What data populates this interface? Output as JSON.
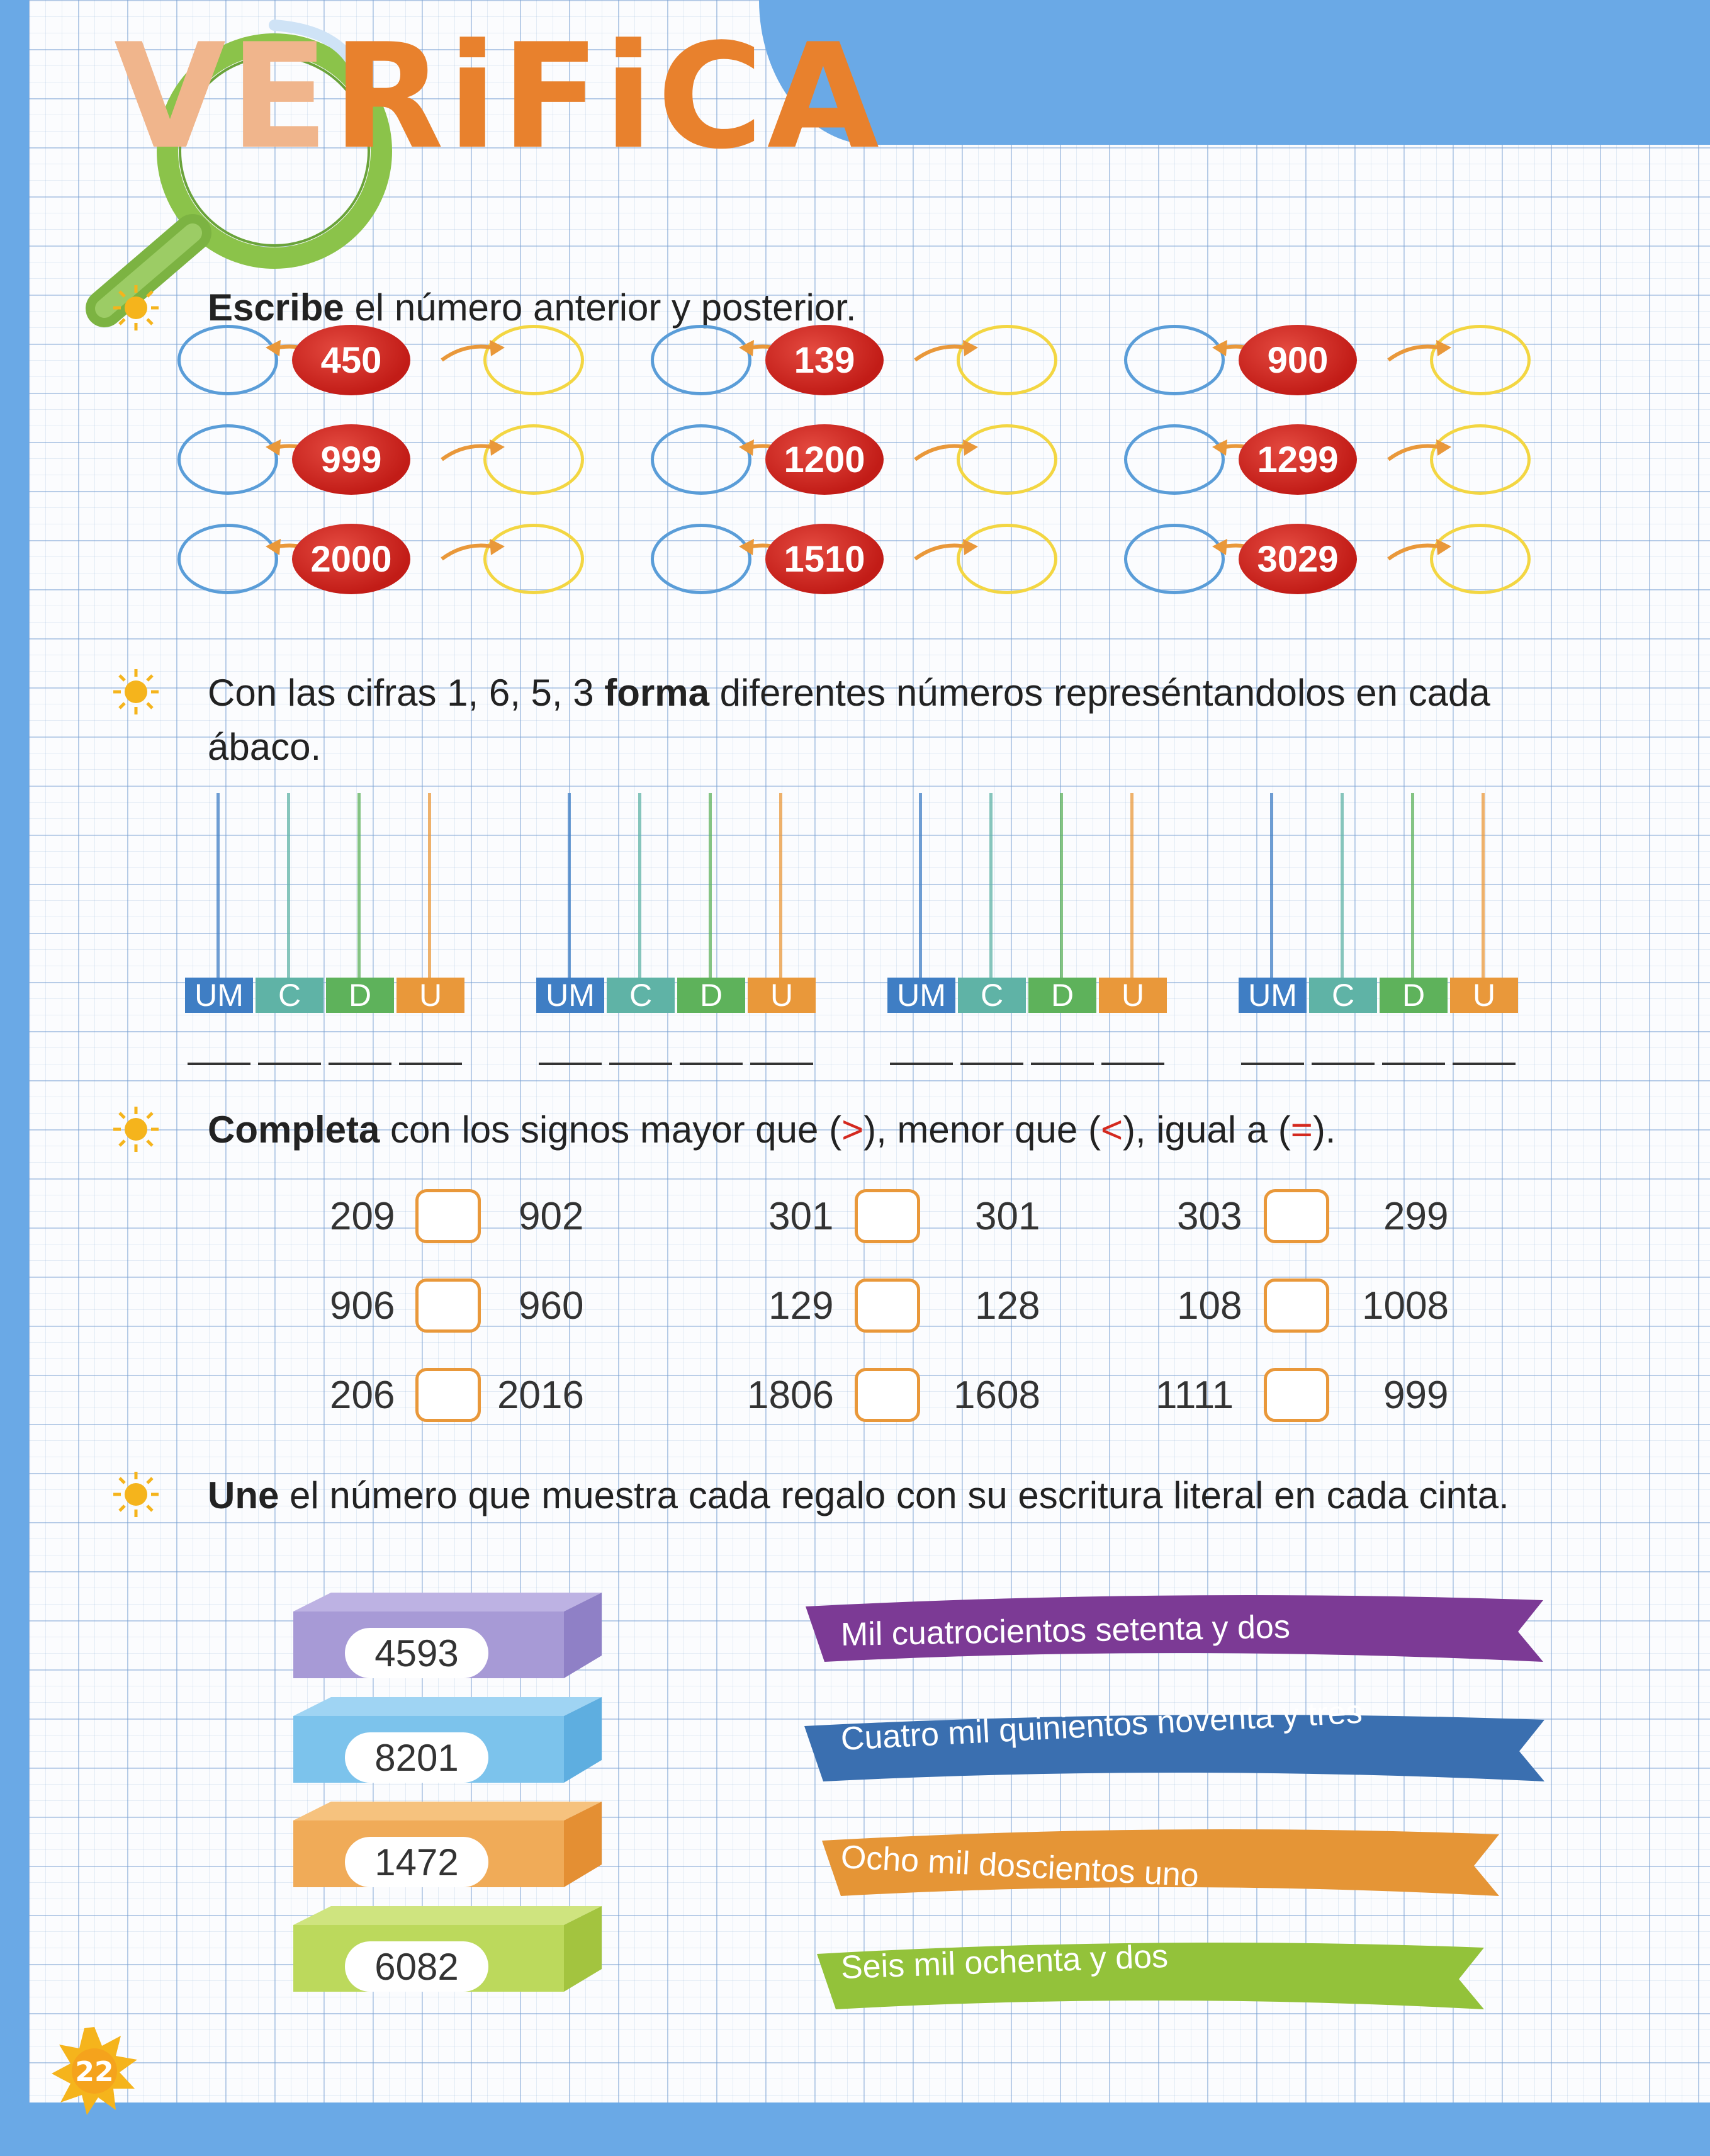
{
  "title": {
    "part1": "VE",
    "part2": "RiFiCA"
  },
  "page_number": "22",
  "section1": {
    "instruction_bold": "Escribe",
    "instruction_rest": " el número anterior y posterior.",
    "numbers": [
      "450",
      "139",
      "900",
      "999",
      "1200",
      "1299",
      "2000",
      "1510",
      "3029"
    ]
  },
  "section2": {
    "instruction_pre": "Con las cifras 1, 6, 5, 3 ",
    "instruction_bold": "forma",
    "instruction_post": " diferentes números represéntandolos en cada ábaco.",
    "labels": [
      "UM",
      "C",
      "D",
      "U"
    ],
    "colors": [
      "#3f7ec4",
      "#5fb3a6",
      "#5eb25b",
      "#e9983a"
    ]
  },
  "section3": {
    "instruction_bold": "Completa",
    "instruction_pre": " con los signos mayor que (",
    "gt": ">",
    "instruction_mid1": "), menor que (",
    "lt": "<",
    "instruction_mid2": "), igual a (",
    "eq": "=",
    "instruction_end": ").",
    "rows": [
      [
        [
          "209",
          "902"
        ],
        [
          "301",
          "301"
        ],
        [
          "303",
          "299"
        ]
      ],
      [
        [
          "906",
          "960"
        ],
        [
          "129",
          "128"
        ],
        [
          "108",
          "1008"
        ]
      ],
      [
        [
          "206",
          "2016"
        ],
        [
          "1806",
          "1608"
        ],
        [
          "1111",
          "999"
        ]
      ]
    ]
  },
  "section4": {
    "instruction_bold": "Une",
    "instruction_rest": " el número que muestra cada regalo con su escritura literal en cada cinta.",
    "gifts": [
      "4593",
      "8201",
      "1472",
      "6082"
    ],
    "ribbons": [
      "Mil cuatrocientos setenta y dos",
      "Cuatro mil quinientos noventa y tres",
      "Ocho mil doscientos uno",
      "Seis mil ochenta y dos"
    ]
  }
}
